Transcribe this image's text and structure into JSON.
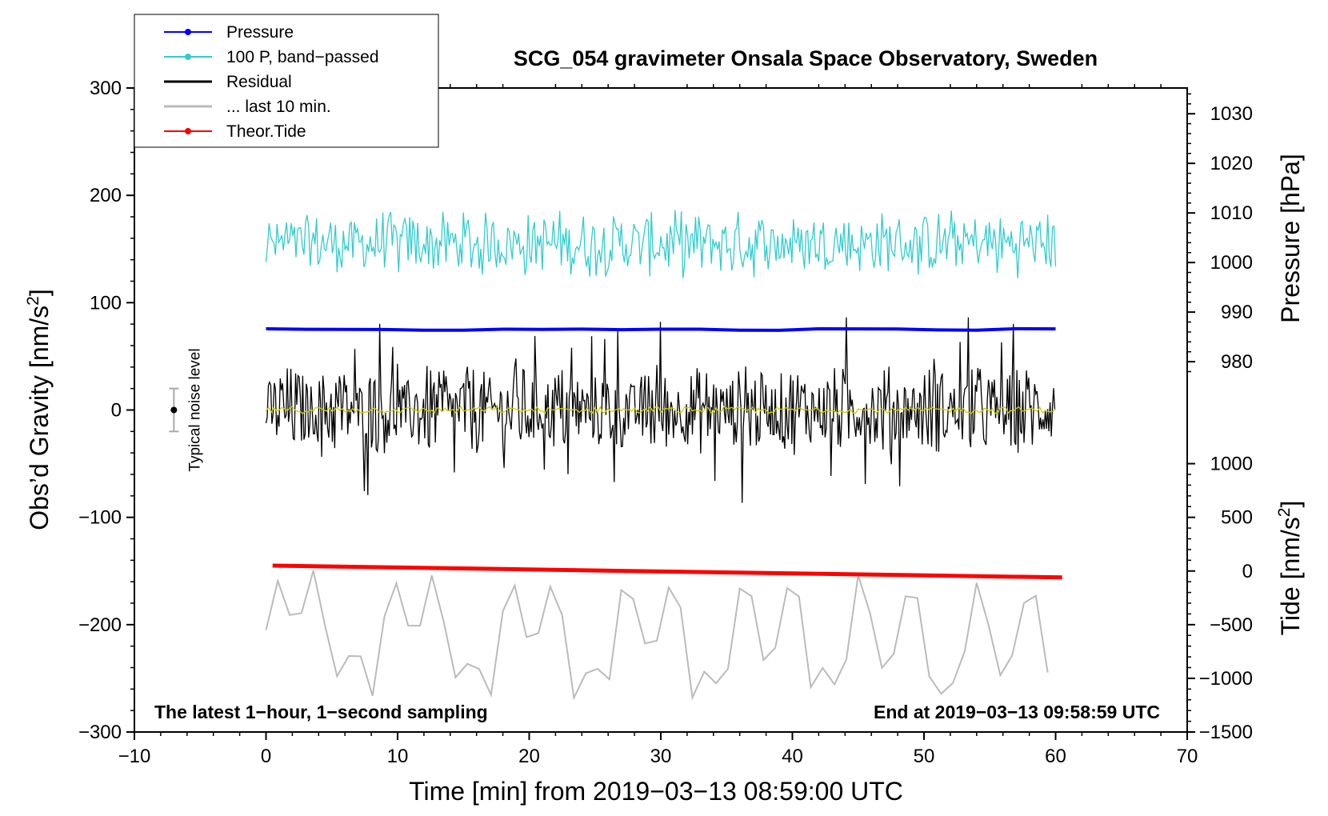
{
  "chart_data": {
    "type": "line",
    "title": "SCG_054 gravimeter Onsala Space Observatory, Sweden",
    "xlabel": "Time [min] from 2019−03−13 08:59:00 UTC",
    "ylabel_left_prefix": "Obs’d Gravity [nm/s",
    "ylabel_left_sup": "2",
    "ylabel_left_suffix": "]",
    "ylabel_right_pressure": "Pressure [hPa]",
    "ylabel_right_tide_prefix": "Tide [nm/s",
    "ylabel_right_tide_sup": "2",
    "ylabel_right_tide_suffix": "]",
    "xlim": [
      -10,
      70
    ],
    "ylim": [
      -300,
      300
    ],
    "x_ticks": [
      -10,
      0,
      10,
      20,
      30,
      40,
      50,
      60,
      70
    ],
    "x_tick_labels": [
      "−10",
      "0",
      "10",
      "20",
      "30",
      "40",
      "50",
      "60",
      "70"
    ],
    "y_ticks": [
      -300,
      -200,
      -100,
      0,
      100,
      200,
      300
    ],
    "y_tick_labels": [
      "−300",
      "−200",
      "−100",
      "0",
      "100",
      "200",
      "300"
    ],
    "pressure_axis": {
      "ticks": [
        980,
        990,
        1000,
        1010,
        1020,
        1030
      ],
      "tick_labels": [
        "980",
        "990",
        "1000",
        "1010",
        "1020",
        "1030"
      ],
      "gravity_at_980": 45,
      "gravity_per_hpa": 4.62
    },
    "tide_axis": {
      "ticks": [
        -1500,
        -1000,
        -500,
        0,
        500,
        1000
      ],
      "tick_labels": [
        "−1500",
        "−1000",
        "−500",
        "0",
        "500",
        "1000"
      ],
      "gravity_at_0": -150,
      "gravity_per_unit": 0.1
    },
    "legend": [
      {
        "label": "Pressure",
        "color": "#0000ff",
        "marker": true,
        "width": 1
      },
      {
        "label": "100 P, band−passed",
        "color": "#33cccc",
        "marker": true,
        "width": 1
      },
      {
        "label": "Residual",
        "color": "#000000",
        "marker": false,
        "width": 2
      },
      {
        "label": "... last 10 min.",
        "color": "#bbbbbb",
        "marker": false,
        "width": 2
      },
      {
        "label": "Theor.Tide",
        "color": "#ff0000",
        "marker": true,
        "width": 1
      }
    ],
    "series": [
      {
        "name": "Pressure",
        "color": "#0000ff",
        "x_range": [
          0,
          60
        ],
        "style": "constant",
        "value": 75,
        "amp": 0.8,
        "period": 3
      },
      {
        "name": "100 P, band-passed",
        "color": "#33cccc",
        "x_range": [
          0,
          60
        ],
        "style": "noise",
        "center": 155,
        "amp": 28,
        "period": 0.12
      },
      {
        "name": "Residual",
        "color": "#000000",
        "x_range": [
          0,
          60
        ],
        "style": "burst",
        "center": 0,
        "amp": 42,
        "period": 0.09
      },
      {
        "name": "Residual smoothed",
        "color": "#cccc00",
        "x_range": [
          0,
          60
        ],
        "style": "noise",
        "center": 0,
        "amp": 3,
        "period": 0.2
      },
      {
        "name": "... last 10 min.",
        "color": "#bbbbbb",
        "x_range": [
          0,
          60
        ],
        "style": "wave",
        "center": -205,
        "amp": 55,
        "period": 0.9
      },
      {
        "name": "Theor.Tide",
        "color": "#ff0000",
        "x_range": [
          0.5,
          60.5
        ],
        "style": "linear",
        "start": -145,
        "end": -156
      }
    ],
    "noise_level": {
      "label": "Typical noise level",
      "x": -7,
      "center": 0,
      "half_range": 20
    },
    "annotation_left": "The latest 1−hour, 1−second sampling",
    "annotation_right": "End at 2019−03−13 09:58:59 UTC"
  }
}
